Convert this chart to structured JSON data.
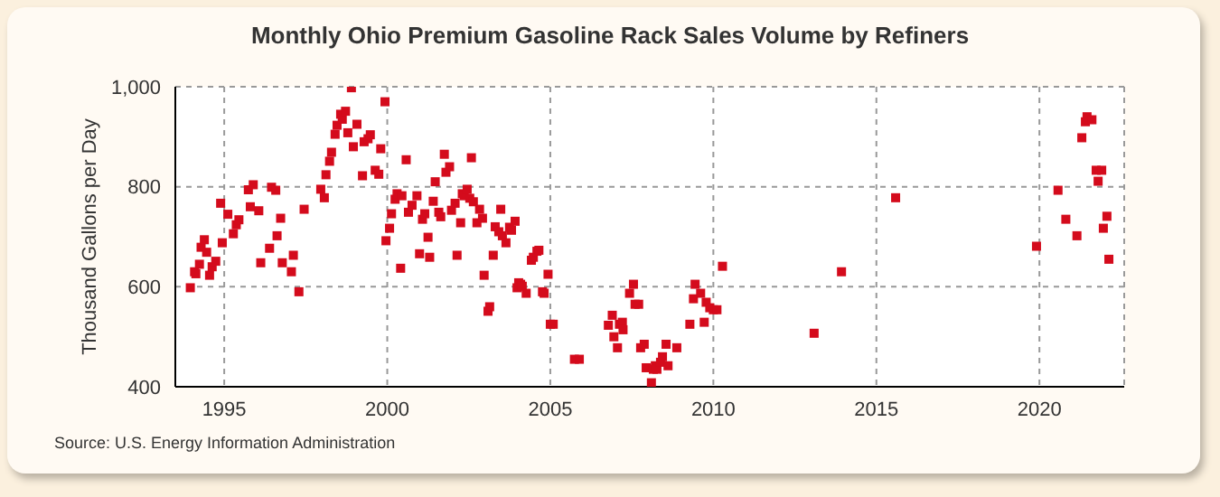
{
  "chart_data": {
    "type": "scatter",
    "title": "Monthly Ohio Premium Gasoline Rack Sales Volume by Refiners",
    "ylabel": "Thousand Gallons per Day",
    "annotations": [
      "Source: U.S. Energy Information Administration"
    ],
    "x": [
      1993.96,
      1994.09,
      1994.13,
      1994.24,
      1994.29,
      1994.39,
      1994.46,
      1994.55,
      1994.63,
      1994.74,
      1994.89,
      1994.94,
      1995.11,
      1995.28,
      1995.37,
      1995.45,
      1995.74,
      1995.8,
      1995.89,
      1996.06,
      1996.12,
      1996.39,
      1996.45,
      1996.58,
      1996.62,
      1996.73,
      1996.78,
      1997.06,
      1997.12,
      1997.29,
      1997.45,
      1997.96,
      1998.07,
      1998.12,
      1998.23,
      1998.29,
      1998.4,
      1998.46,
      1998.57,
      1998.62,
      1998.72,
      1998.79,
      1998.9,
      1998.96,
      1999.07,
      1999.24,
      1999.29,
      1999.41,
      1999.48,
      1999.63,
      1999.74,
      1999.8,
      1999.93,
      1999.96,
      2000.07,
      2000.13,
      2000.24,
      2000.3,
      2000.41,
      2000.45,
      2000.58,
      2000.65,
      2000.76,
      2000.91,
      2000.99,
      2001.08,
      2001.15,
      2001.25,
      2001.3,
      2001.41,
      2001.47,
      2001.58,
      2001.64,
      2001.75,
      2001.8,
      2001.91,
      2001.97,
      2002.08,
      2002.14,
      2002.25,
      2002.3,
      2002.36,
      2002.45,
      2002.53,
      2002.58,
      2002.64,
      2002.75,
      2002.83,
      2002.92,
      2002.97,
      2003.09,
      2003.14,
      2003.25,
      2003.31,
      2003.42,
      2003.48,
      2003.53,
      2003.64,
      2003.75,
      2003.81,
      2003.92,
      2003.98,
      2004.03,
      2004.09,
      2004.14,
      2004.26,
      2004.42,
      2004.48,
      2004.59,
      2004.65,
      2004.76,
      2004.81,
      2004.93,
      2005,
      2005.09,
      2005.74,
      2005.89,
      2006.78,
      2006.9,
      2006.95,
      2007.06,
      2007.12,
      2007.21,
      2007.23,
      2007.43,
      2007.55,
      2007.6,
      2007.71,
      2007.77,
      2007.88,
      2007.94,
      2008.1,
      2008.16,
      2008.22,
      2008.27,
      2008.38,
      2008.44,
      2008.55,
      2008.61,
      2008.88,
      2009.28,
      2009.39,
      2009.44,
      2009.61,
      2009.72,
      2009.78,
      2009.89,
      2010,
      2010.11,
      2010.28,
      2013.09,
      2013.93,
      2015.59,
      2019.91,
      2020.57,
      2020.81,
      2021.15,
      2021.3,
      2021.41,
      2021.46,
      2021.61,
      2021.74,
      2021.8,
      2021.91,
      2021.96,
      2022.07,
      2022.13
    ],
    "series": [
      {
        "color": "#d40b1c",
        "values": [
          598,
          630,
          626,
          645,
          679,
          694,
          669,
          623,
          640,
          651,
          767,
          688,
          745,
          706,
          724,
          734,
          794,
          760,
          804,
          752,
          648,
          677,
          799,
          793,
          702,
          737,
          648,
          630,
          663,
          590,
          755,
          795,
          778,
          824,
          851,
          869,
          905,
          923,
          945,
          935,
          951,
          908,
          998,
          880,
          925,
          822,
          890,
          896,
          904,
          833,
          825,
          876,
          970,
          692,
          717,
          746,
          775,
          786,
          637,
          782,
          854,
          749,
          763,
          782,
          666,
          735,
          746,
          699,
          659,
          771,
          810,
          749,
          740,
          865,
          829,
          840,
          753,
          767,
          663,
          728,
          786,
          782,
          795,
          777,
          858,
          770,
          728,
          755,
          737,
          623,
          551,
          560,
          663,
          720,
          710,
          755,
          702,
          688,
          719,
          713,
          731,
          598,
          608,
          605,
          601,
          587,
          653,
          659,
          671,
          673,
          590,
          587,
          625,
          525,
          525,
          455,
          455,
          523,
          543,
          500,
          478,
          525,
          529,
          514,
          587,
          605,
          565,
          565,
          478,
          485,
          438,
          408,
          435,
          442,
          435,
          449,
          460,
          485,
          442,
          478,
          525,
          576,
          605,
          587,
          529,
          569,
          558,
          554,
          554,
          641,
          507,
          630,
          778,
          681,
          793,
          735,
          702,
          898,
          930,
          940,
          934,
          833,
          811,
          833,
          717,
          741,
          655
        ]
      }
    ],
    "xlim": [
      1993.5,
      2022.6
    ],
    "xticks": [
      1995,
      2000,
      2005,
      2010,
      2015,
      2020
    ],
    "ylim": [
      400,
      1000
    ],
    "yticks": [
      400,
      600,
      800,
      {
        "value": 1000,
        "label": "1,000"
      }
    ],
    "grid": true,
    "marker": "square",
    "legend": false
  }
}
